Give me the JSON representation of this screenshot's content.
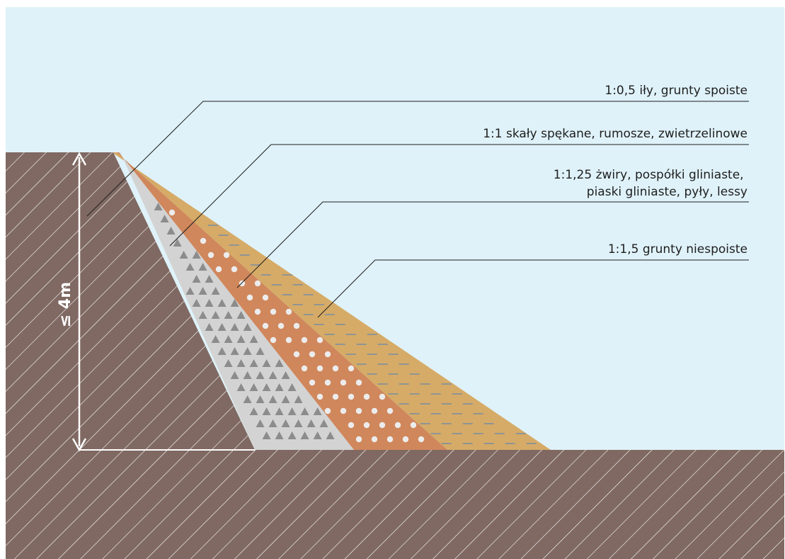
{
  "diagram": {
    "colors": {
      "sky": "#dff2f9",
      "soil": "#7f6962",
      "hatch": "#ffffff",
      "rock_layer": "#d3d3d3",
      "rock_marks": "#8c8c8c",
      "gravel_layer": "#d0875c",
      "gravel_marks": "#ececec",
      "sand_layer": "#d6ab67",
      "sand_marks": "#7e8ea0",
      "leader_lines": "#1e1e1e"
    },
    "height_label": "≤ 4m",
    "labels": [
      {
        "lines": [
          "1:0,5 iły, grunty spoiste"
        ]
      },
      {
        "lines": [
          "1:1 skały spękane, rumosze, zwietrzelinowe"
        ]
      },
      {
        "lines": [
          "1:1,25 żwiry, pospółki gliniaste,",
          "piaski gliniaste, pyły, lessy"
        ]
      },
      {
        "lines": [
          "1:1,5 grunty niespoiste"
        ]
      }
    ]
  }
}
